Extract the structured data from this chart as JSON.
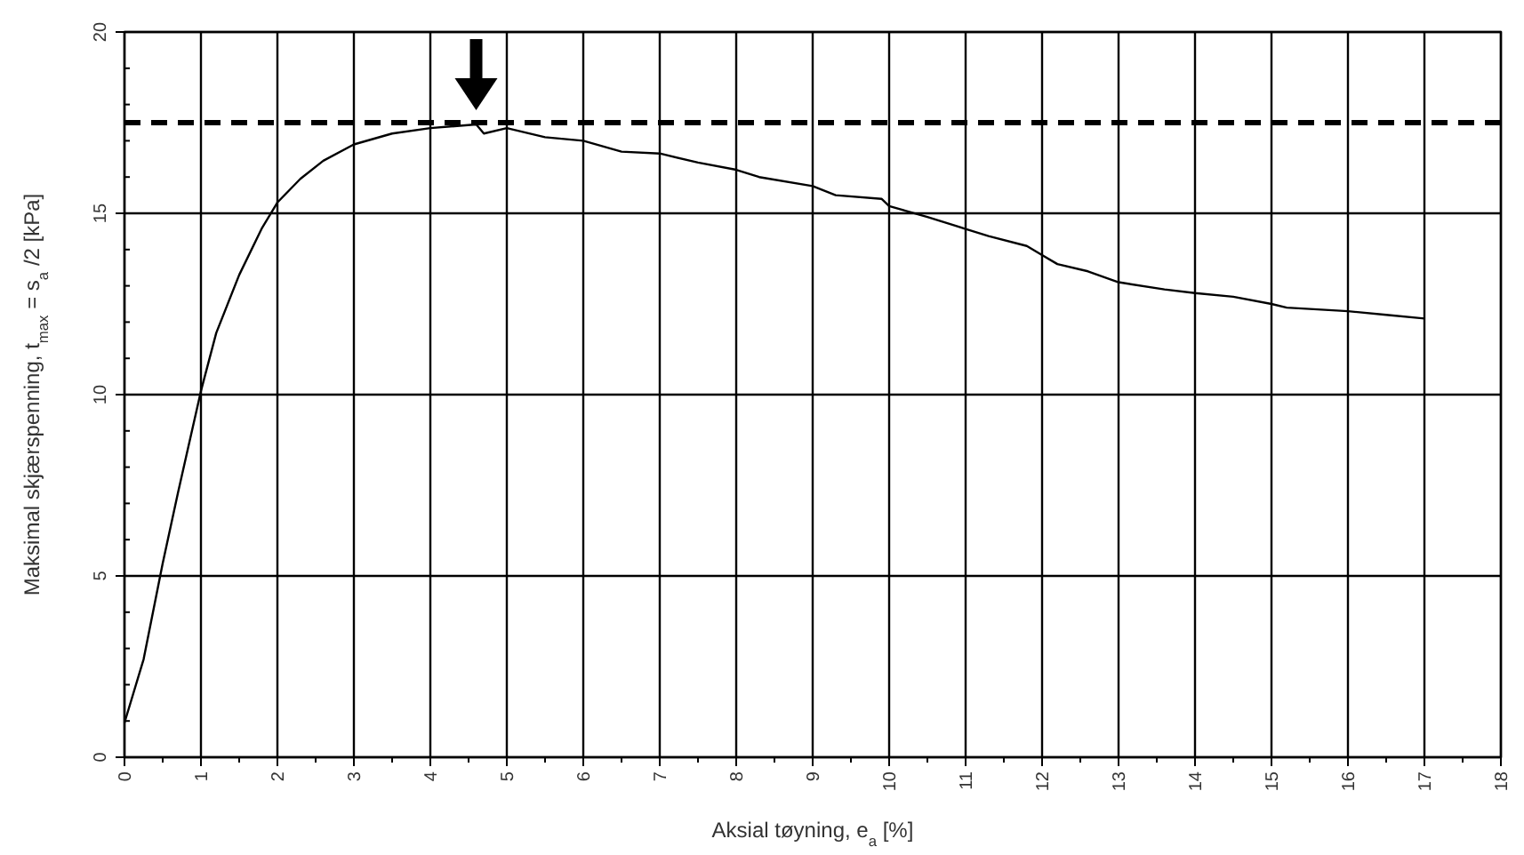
{
  "chart_data": {
    "type": "line",
    "xlabel": "Aksial tøyning, e$_{a}$ [%]",
    "ylabel": "Maksimal skjærspenning, t$_{max}$ = s$_{a}$ /2  [kPa]",
    "xlim": [
      0,
      18
    ],
    "ylim": [
      0,
      20
    ],
    "xticks": [
      0,
      {
        "value": 0.5,
        "label": null
      },
      1,
      {
        "value": 1.5,
        "label": null
      },
      2,
      {
        "value": 2.5,
        "label": null
      },
      3,
      {
        "value": 3.5,
        "label": null
      },
      4,
      {
        "value": 4.5,
        "label": null
      },
      5,
      {
        "value": 5.5,
        "label": null
      },
      6,
      {
        "value": 6.5,
        "label": null
      },
      7,
      {
        "value": 7.5,
        "label": null
      },
      8,
      {
        "value": 8.5,
        "label": null
      },
      9,
      {
        "value": 9.5,
        "label": null
      },
      10,
      {
        "value": 10.5,
        "label": null
      },
      11,
      {
        "value": 11.5,
        "label": null
      },
      12,
      {
        "value": 12.5,
        "label": null
      },
      13,
      {
        "value": 13.5,
        "label": null
      },
      14,
      {
        "value": 14.5,
        "label": null
      },
      15,
      {
        "value": 15.5,
        "label": null
      },
      16,
      {
        "value": 16.5,
        "label": null
      },
      17,
      {
        "value": 17.5,
        "label": null
      },
      18
    ],
    "yticks": [
      0,
      {
        "value": 1,
        "label": null
      },
      {
        "value": 2,
        "label": null
      },
      {
        "value": 3,
        "label": null
      },
      {
        "value": 4,
        "label": null
      },
      5,
      {
        "value": 6,
        "label": null
      },
      {
        "value": 7,
        "label": null
      },
      {
        "value": 8,
        "label": null
      },
      {
        "value": 9,
        "label": null
      },
      10,
      {
        "value": 11,
        "label": null
      },
      {
        "value": 12,
        "label": null
      },
      {
        "value": 13,
        "label": null
      },
      {
        "value": 14,
        "label": null
      },
      15,
      {
        "value": 16,
        "label": null
      },
      {
        "value": 17,
        "label": null
      },
      {
        "value": 18,
        "label": null
      },
      {
        "value": 19,
        "label": null
      },
      20
    ],
    "grid": true,
    "marker": "none",
    "line_style": "solid",
    "ref_lines": [
      {
        "axis": "y",
        "value": 17.5,
        "line_style": "dashed",
        "color": "#000000"
      }
    ],
    "series": [
      {
        "color": "#000000",
        "x": [
          0,
          0.25,
          0.5,
          0.7,
          1.0,
          1.2,
          1.5,
          1.8,
          2.0,
          2.3,
          2.6,
          3.0,
          3.5,
          4.0,
          4.6,
          4.7,
          5.0,
          5.5,
          6.0,
          6.5,
          7.0,
          7.5,
          8.0,
          8.3,
          9.0,
          9.3,
          9.9,
          10.0,
          10.5,
          11.0,
          11.3,
          11.8,
          12.0,
          12.2,
          12.6,
          13.0,
          13.6,
          14.0,
          14.5,
          15.0,
          15.2,
          16.0,
          16.5,
          17.0
        ],
        "values": [
          0.95,
          2.7,
          5.35,
          7.3,
          10.1,
          11.7,
          13.3,
          14.6,
          15.3,
          15.95,
          16.45,
          16.9,
          17.2,
          17.35,
          17.45,
          17.2,
          17.35,
          17.1,
          17.0,
          16.7,
          16.65,
          16.4,
          16.2,
          16.0,
          15.75,
          15.5,
          15.4,
          15.2,
          14.9,
          14.57,
          14.37,
          14.1,
          13.85,
          13.6,
          13.4,
          13.1,
          12.9,
          12.8,
          12.7,
          12.5,
          12.4,
          12.3,
          12.2,
          12.1
        ]
      }
    ]
  }
}
